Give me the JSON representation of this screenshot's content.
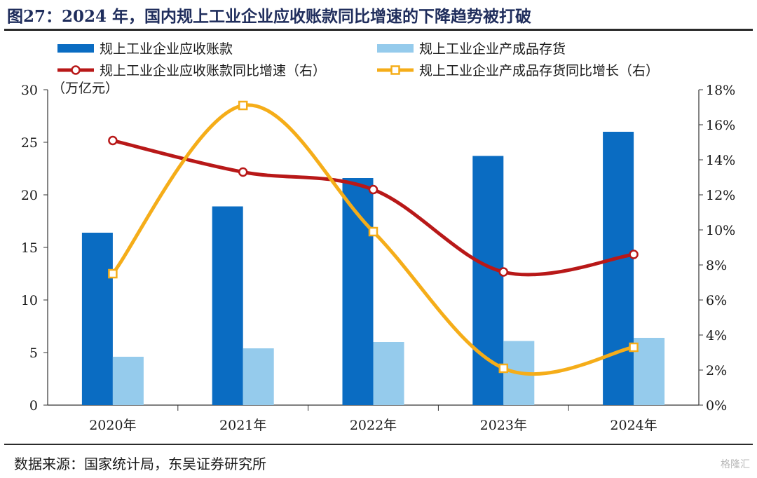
{
  "header": {
    "title": "图27：2024 年，国内规上工业企业应收账款同比增速的下降趋势被打破"
  },
  "footer": {
    "source": "数据来源：国家统计局，东吴证券研究所",
    "watermark": "格隆汇"
  },
  "colors": {
    "bar_dark": "#0a6cc2",
    "bar_light": "#95cbec",
    "line_red": "#b81818",
    "line_orange": "#f5ad19"
  },
  "chart_data": {
    "type": "bar",
    "categories": [
      "2020年",
      "2021年",
      "2022年",
      "2023年",
      "2024年"
    ],
    "left_axis": {
      "unit_label": "（万亿元）",
      "ylim": [
        0,
        30
      ],
      "ticks": [
        "0",
        "5",
        "10",
        "15",
        "20",
        "25",
        "30"
      ]
    },
    "right_axis": {
      "ylim": [
        0,
        18
      ],
      "ticks": [
        "0%",
        "2%",
        "4%",
        "6%",
        "8%",
        "10%",
        "12%",
        "14%",
        "16%",
        "18%"
      ]
    },
    "series": [
      {
        "name": "规上工业企业应收账款",
        "type": "bar",
        "axis": "left",
        "color": "#0a6cc2",
        "values": [
          16.4,
          18.9,
          21.6,
          23.7,
          26.0
        ]
      },
      {
        "name": "规上工业企业产成品存货",
        "type": "bar",
        "axis": "left",
        "color": "#95cbec",
        "values": [
          4.6,
          5.4,
          6.0,
          6.1,
          6.4
        ]
      },
      {
        "name": "规上工业企业应收账款同比增速（右）",
        "type": "line",
        "axis": "right",
        "color": "#b81818",
        "values": [
          15.1,
          13.3,
          12.3,
          7.6,
          8.6
        ]
      },
      {
        "name": "规上工业企业产成品存货同比增长（右）",
        "type": "line",
        "axis": "right",
        "color": "#f5ad19",
        "values": [
          7.5,
          17.1,
          9.9,
          2.1,
          3.3
        ]
      }
    ],
    "legend_position": "top"
  }
}
